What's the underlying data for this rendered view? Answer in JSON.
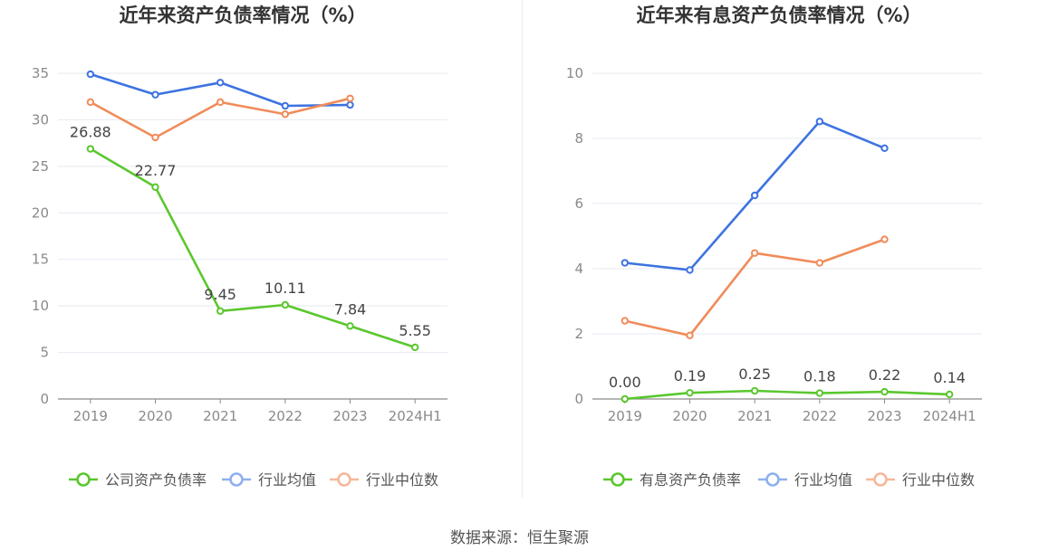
{
  "chart_data": [
    {
      "type": "line",
      "title": "近年来资产负债率情况（%）",
      "categories": [
        "2019",
        "2020",
        "2021",
        "2022",
        "2023",
        "2024H1"
      ],
      "ylim": [
        0,
        35
      ],
      "yticks": [
        0,
        5,
        10,
        15,
        20,
        25,
        30,
        35
      ],
      "grid": true,
      "legend": "bottom",
      "series": [
        {
          "name": "公司资产负债率",
          "color": "#5ac72e",
          "values": [
            26.88,
            22.77,
            9.45,
            10.11,
            7.84,
            5.55
          ],
          "labels": [
            "26.88",
            "22.77",
            "9.45",
            "10.11",
            "7.84",
            "5.55"
          ]
        },
        {
          "name": "行业均值",
          "color": "#3d73e0",
          "values": [
            34.9,
            32.7,
            34.0,
            31.5,
            31.6,
            null
          ]
        },
        {
          "name": "行业中位数",
          "color": "#f08c5a",
          "values": [
            31.9,
            28.1,
            31.9,
            30.6,
            32.3,
            null
          ]
        }
      ]
    },
    {
      "type": "line",
      "title": "近年来有息资产负债率情况（%）",
      "categories": [
        "2019",
        "2020",
        "2021",
        "2022",
        "2023",
        "2024H1"
      ],
      "ylim": [
        0,
        10
      ],
      "yticks": [
        0,
        2,
        4,
        6,
        8,
        10
      ],
      "grid": true,
      "legend": "bottom",
      "series": [
        {
          "name": "有息资产负债率",
          "color": "#5ac72e",
          "values": [
            0.0,
            0.19,
            0.25,
            0.18,
            0.22,
            0.14
          ],
          "labels": [
            "0.00",
            "0.19",
            "0.25",
            "0.18",
            "0.22",
            "0.14"
          ]
        },
        {
          "name": "行业均值",
          "color": "#3d73e0",
          "values": [
            4.18,
            3.96,
            6.25,
            8.52,
            7.7,
            null
          ]
        },
        {
          "name": "行业中位数",
          "color": "#f08c5a",
          "values": [
            2.4,
            1.95,
            4.48,
            4.18,
            4.9,
            null
          ]
        }
      ]
    }
  ],
  "legend_colors": {
    "#5ac72e": "#5ac72e",
    "#3d73e0": "#8fb0ee",
    "#f08c5a": "#f6b79a"
  },
  "source": "数据来源：恒生聚源"
}
